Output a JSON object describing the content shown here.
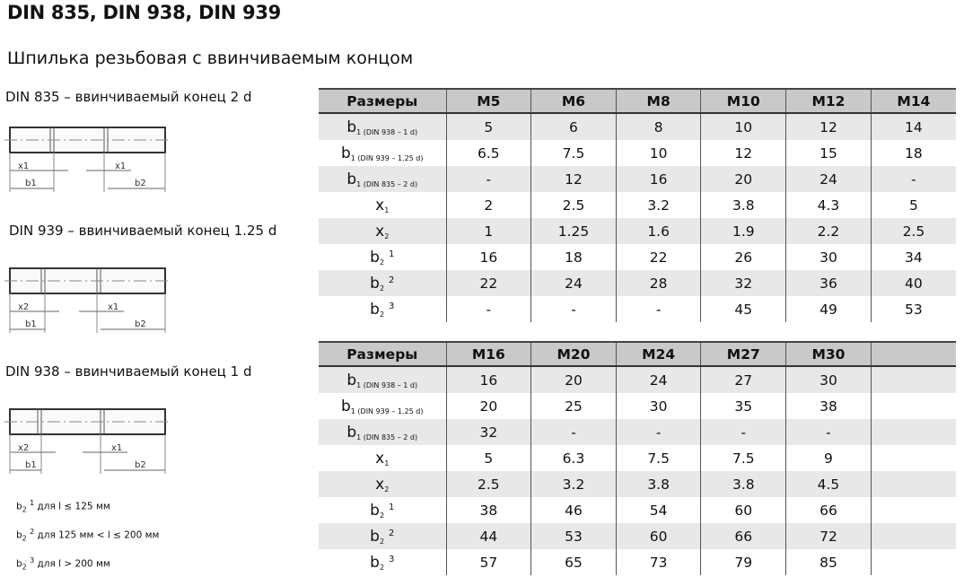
{
  "title": "DIN 835, DIN 938, DIN 939",
  "subtitle": "Шпилька резьбовая с ввинчиваемым концом",
  "diagrams": [
    {
      "caption": "DIN 835 – ввинчиваемый конец 2 d",
      "labels": {
        "left_x": "x1",
        "right_x": "x1",
        "left_b": "b1",
        "right_b": "b2"
      }
    },
    {
      "caption": "DIN 939 – ввинчиваемый конец 1.25 d",
      "labels": {
        "left_x": "x2",
        "right_x": "x1",
        "left_b": "b1",
        "right_b": "b2"
      }
    },
    {
      "caption": "DIN 938 – ввинчиваемый конец 1 d",
      "labels": {
        "left_x": "x2",
        "right_x": "x1",
        "left_b": "b1",
        "right_b": "b2"
      }
    }
  ],
  "notes": [
    {
      "base": "b",
      "sub": "2",
      "sup": "1",
      "text": "для l ≤ 125 мм"
    },
    {
      "base": "b",
      "sub": "2",
      "sup": "2",
      "text": "для 125 мм < l ≤ 200 мм"
    },
    {
      "base": "b",
      "sub": "2",
      "sup": "3",
      "text": "для l > 200 мм"
    }
  ],
  "row_labels": [
    {
      "base": "b",
      "sub": "1 (DIN 938 – 1 d)",
      "sup": ""
    },
    {
      "base": "b",
      "sub": "1 (DIN 939 – 1.25 d)",
      "sup": ""
    },
    {
      "base": "b",
      "sub": "1 (DIN 835 – 2 d)",
      "sup": ""
    },
    {
      "base": "x",
      "sub": "1",
      "sup": ""
    },
    {
      "base": "x",
      "sub": "2",
      "sup": ""
    },
    {
      "base": "b",
      "sub": "2",
      "sup": "1"
    },
    {
      "base": "b",
      "sub": "2",
      "sup": "2"
    },
    {
      "base": "b",
      "sub": "2",
      "sup": "3"
    }
  ],
  "tables": [
    {
      "header": [
        "Размеры",
        "M5",
        "M6",
        "M8",
        "M10",
        "M12",
        "M14"
      ],
      "rows": [
        [
          "5",
          "6",
          "8",
          "10",
          "12",
          "14"
        ],
        [
          "6.5",
          "7.5",
          "10",
          "12",
          "15",
          "18"
        ],
        [
          "-",
          "12",
          "16",
          "20",
          "24",
          "-"
        ],
        [
          "2",
          "2.5",
          "3.2",
          "3.8",
          "4.3",
          "5"
        ],
        [
          "1",
          "1.25",
          "1.6",
          "1.9",
          "2.2",
          "2.5"
        ],
        [
          "16",
          "18",
          "22",
          "26",
          "30",
          "34"
        ],
        [
          "22",
          "24",
          "28",
          "32",
          "36",
          "40"
        ],
        [
          "-",
          "-",
          "-",
          "45",
          "49",
          "53"
        ]
      ]
    },
    {
      "header": [
        "Размеры",
        "M16",
        "M20",
        "M24",
        "M27",
        "M30",
        ""
      ],
      "rows": [
        [
          "16",
          "20",
          "24",
          "27",
          "30",
          ""
        ],
        [
          "20",
          "25",
          "30",
          "35",
          "38",
          ""
        ],
        [
          "32",
          "-",
          "-",
          "-",
          "-",
          ""
        ],
        [
          "5",
          "6.3",
          "7.5",
          "7.5",
          "9",
          ""
        ],
        [
          "2.5",
          "3.2",
          "3.8",
          "3.8",
          "4.5",
          ""
        ],
        [
          "38",
          "46",
          "54",
          "60",
          "66",
          ""
        ],
        [
          "44",
          "53",
          "60",
          "66",
          "72",
          ""
        ],
        [
          "57",
          "65",
          "73",
          "79",
          "85",
          ""
        ]
      ]
    }
  ]
}
